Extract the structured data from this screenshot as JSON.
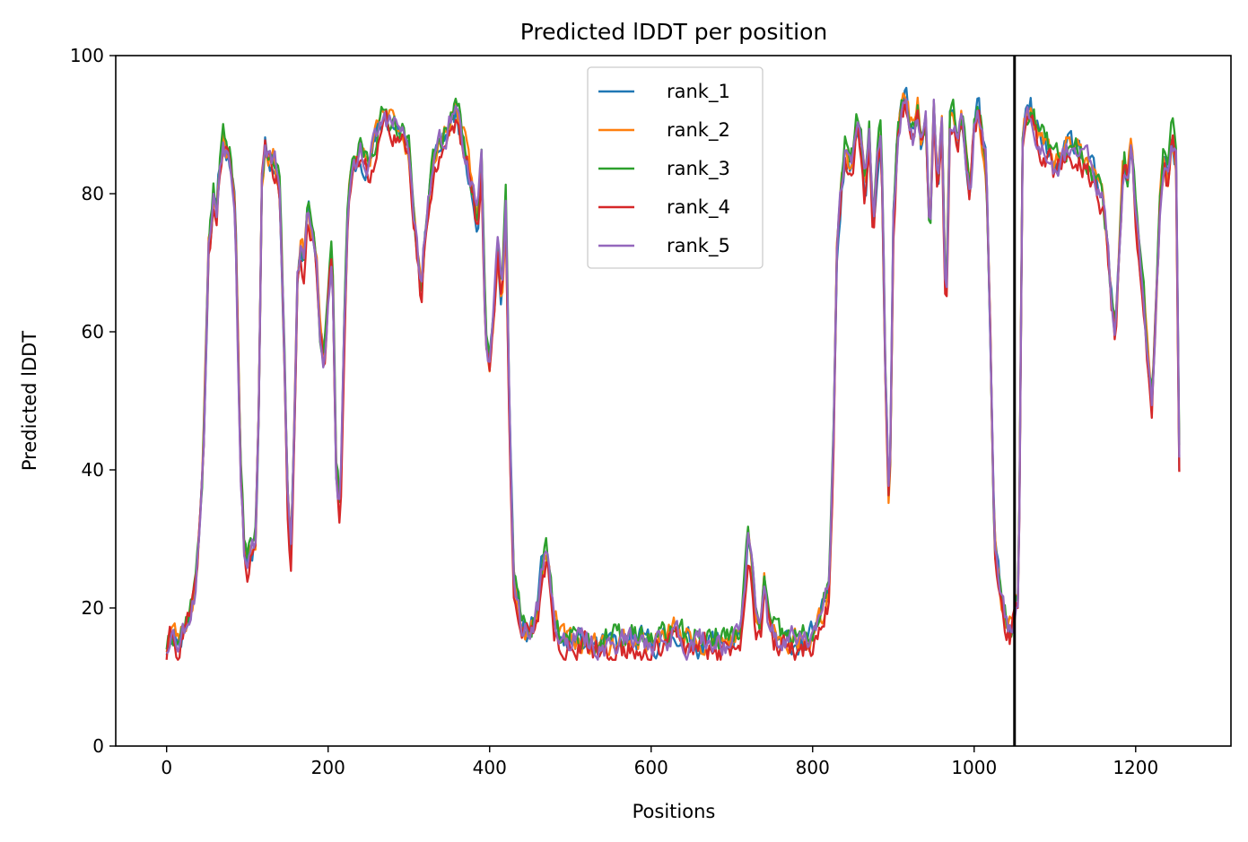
{
  "chart_data": {
    "type": "line",
    "title": "Predicted lDDT per position",
    "xlabel": "Positions",
    "ylabel": "Predicted lDDT",
    "xlim": [
      -63,
      1318
    ],
    "ylim": [
      0,
      100
    ],
    "xticks": [
      0,
      200,
      400,
      600,
      800,
      1000,
      1200
    ],
    "yticks": [
      0,
      20,
      40,
      60,
      80,
      100
    ],
    "legend_position": "upper-center",
    "grid": false,
    "chain_break_x": 1050,
    "colors": [
      "#1f77b4",
      "#ff7f0e",
      "#2ca02c",
      "#d62728",
      "#9467bd"
    ],
    "profile": {
      "x": [
        0,
        5,
        15,
        25,
        35,
        45,
        52,
        58,
        62,
        66,
        70,
        75,
        80,
        85,
        88,
        92,
        96,
        100,
        105,
        110,
        114,
        118,
        122,
        126,
        130,
        135,
        140,
        145,
        150,
        154,
        158,
        162,
        166,
        170,
        175,
        180,
        185,
        190,
        195,
        200,
        205,
        210,
        215,
        220,
        225,
        230,
        240,
        250,
        260,
        270,
        280,
        290,
        300,
        305,
        310,
        315,
        320,
        330,
        340,
        350,
        360,
        370,
        380,
        385,
        390,
        395,
        400,
        405,
        410,
        415,
        420,
        425,
        430,
        435,
        440,
        450,
        460,
        465,
        470,
        475,
        480,
        490,
        500,
        520,
        540,
        560,
        580,
        600,
        620,
        630,
        640,
        660,
        680,
        700,
        710,
        715,
        720,
        725,
        730,
        735,
        740,
        745,
        750,
        760,
        770,
        780,
        790,
        800,
        810,
        820,
        825,
        830,
        835,
        840,
        845,
        850,
        855,
        860,
        865,
        870,
        875,
        880,
        885,
        890,
        895,
        900,
        905,
        910,
        915,
        920,
        925,
        930,
        935,
        940,
        945,
        950,
        955,
        960,
        965,
        970,
        975,
        980,
        985,
        990,
        995,
        1000,
        1005,
        1010,
        1015,
        1020,
        1025,
        1030,
        1035,
        1040,
        1045,
        1050,
        1055,
        1060,
        1065,
        1070,
        1075,
        1080,
        1090,
        1100,
        1110,
        1120,
        1130,
        1140,
        1150,
        1160,
        1165,
        1170,
        1175,
        1180,
        1185,
        1190,
        1195,
        1200,
        1205,
        1210,
        1215,
        1220,
        1225,
        1230,
        1235,
        1240,
        1245,
        1250,
        1255
      ],
      "y": [
        14,
        17,
        15,
        18,
        22,
        40,
        72,
        79,
        77,
        84,
        88,
        86,
        84,
        78,
        60,
        40,
        29,
        27,
        28,
        30,
        48,
        82,
        87,
        86,
        85,
        84,
        80,
        60,
        35,
        28,
        45,
        68,
        72,
        70,
        78,
        74,
        72,
        60,
        55,
        65,
        72,
        40,
        34,
        60,
        80,
        82,
        86,
        84,
        88,
        91,
        90,
        89,
        86,
        78,
        72,
        65,
        74,
        84,
        87,
        90,
        92,
        86,
        80,
        75,
        85,
        60,
        55,
        62,
        72,
        65,
        78,
        45,
        25,
        20,
        17,
        16,
        20,
        26,
        28,
        24,
        18,
        15,
        15,
        15,
        14,
        15,
        15,
        15,
        15,
        17,
        15,
        15,
        15,
        15,
        16,
        22,
        30,
        25,
        18,
        16,
        24,
        18,
        16,
        15,
        15,
        15,
        15,
        16,
        18,
        22,
        40,
        72,
        80,
        86,
        84,
        85,
        90,
        88,
        80,
        88,
        75,
        84,
        90,
        55,
        32,
        76,
        88,
        92,
        94,
        91,
        88,
        92,
        86,
        91,
        74,
        92,
        80,
        90,
        60,
        90,
        91,
        88,
        92,
        85,
        80,
        90,
        92,
        88,
        84,
        60,
        30,
        25,
        20,
        18,
        17,
        19,
        22,
        88,
        91,
        92,
        90,
        88,
        86,
        84,
        85,
        87,
        86,
        84,
        82,
        78,
        72,
        65,
        60,
        72,
        85,
        82,
        88,
        78,
        70,
        65,
        55,
        50,
        62,
        78,
        86,
        82,
        88,
        85,
        30
      ]
    },
    "series": [
      {
        "name": "rank_1",
        "seed": 11,
        "offset": 0.0
      },
      {
        "name": "rank_2",
        "seed": 23,
        "offset": 0.4
      },
      {
        "name": "rank_3",
        "seed": 37,
        "offset": 0.8
      },
      {
        "name": "rank_4",
        "seed": 41,
        "offset": -1.0
      },
      {
        "name": "rank_5",
        "seed": 53,
        "offset": 0.2
      }
    ]
  }
}
